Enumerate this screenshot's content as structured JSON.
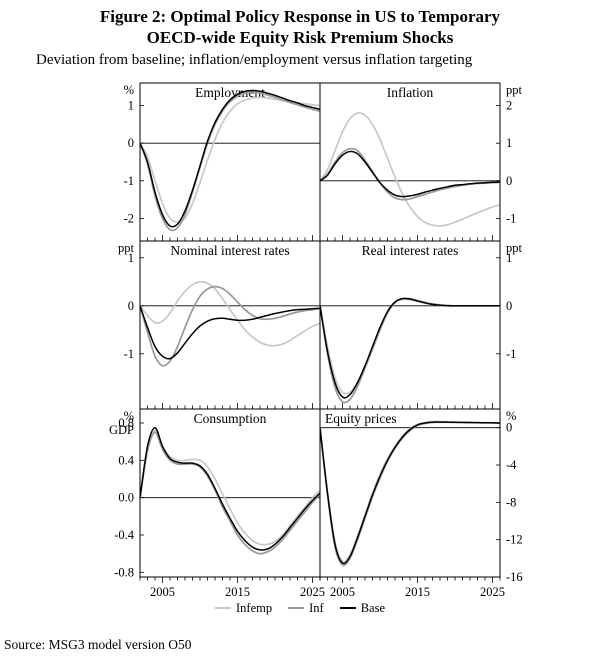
{
  "figure": {
    "title_line1": "Figure 2: Optimal Policy Response in US to Temporary",
    "title_line2": "OECD-wide Equity Risk Premium Shocks",
    "subtitle": "Deviation from baseline; inflation/employment versus inflation targeting",
    "source": "Source: MSG3 model version O50"
  },
  "legend": [
    {
      "label": "Infemp",
      "color": "#c8c8c8"
    },
    {
      "label": "Inf",
      "color": "#999999"
    },
    {
      "label": "Base",
      "color": "#000000"
    }
  ],
  "chart_data": [
    {
      "type": "line",
      "title": "Employment",
      "title_align": "center",
      "unit": "%",
      "axis_side": "left",
      "ylim": [
        -2.6,
        1.6
      ],
      "yticks": [
        1,
        0,
        -1,
        -2
      ],
      "ytick_labels": [
        "1",
        "0",
        "-1",
        "-2"
      ],
      "xlim": [
        2002,
        2026
      ],
      "xticks": [
        2005,
        2015,
        2025
      ],
      "xtick_labels": [
        "2005",
        "2015",
        "2025"
      ],
      "x": [
        2002,
        2003,
        2004,
        2005,
        2006,
        2007,
        2008,
        2009,
        2010,
        2011,
        2012,
        2013,
        2014,
        2015,
        2016,
        2017,
        2018,
        2019,
        2020,
        2021,
        2022,
        2023,
        2024,
        2025,
        2026
      ],
      "series": [
        {
          "name": "Infemp",
          "values": [
            0,
            -0.35,
            -1.0,
            -1.6,
            -2.0,
            -2.1,
            -2.0,
            -1.6,
            -1.05,
            -0.45,
            0.1,
            0.55,
            0.85,
            1.05,
            1.15,
            1.2,
            1.22,
            1.2,
            1.17,
            1.13,
            1.1,
            1.07,
            1.05,
            1.02,
            1.0
          ]
        },
        {
          "name": "Inf",
          "values": [
            0,
            -0.55,
            -1.4,
            -2.0,
            -2.3,
            -2.25,
            -1.9,
            -1.3,
            -0.65,
            0,
            0.5,
            0.85,
            1.1,
            1.25,
            1.33,
            1.35,
            1.33,
            1.28,
            1.22,
            1.15,
            1.08,
            1.02,
            0.96,
            0.9,
            0.85
          ]
        },
        {
          "name": "Base",
          "values": [
            0,
            -0.5,
            -1.3,
            -1.9,
            -2.2,
            -2.15,
            -1.8,
            -1.25,
            -0.6,
            0.05,
            0.55,
            0.9,
            1.15,
            1.3,
            1.38,
            1.4,
            1.38,
            1.33,
            1.27,
            1.2,
            1.13,
            1.07,
            1.0,
            0.95,
            0.9
          ]
        }
      ]
    },
    {
      "type": "line",
      "title": "Inflation",
      "title_align": "center",
      "unit": "ppt",
      "axis_side": "right",
      "ylim": [
        -1.6,
        2.6
      ],
      "yticks": [
        2,
        1,
        0,
        -1
      ],
      "ytick_labels": [
        "2",
        "1",
        "0",
        "-1"
      ],
      "xlim": [
        2002,
        2026
      ],
      "xticks": [
        2005,
        2015,
        2025
      ],
      "xtick_labels": [
        "2005",
        "2015",
        "2025"
      ],
      "x": [
        2002,
        2003,
        2004,
        2005,
        2006,
        2007,
        2008,
        2009,
        2010,
        2011,
        2012,
        2013,
        2014,
        2015,
        2016,
        2017,
        2018,
        2019,
        2020,
        2021,
        2022,
        2023,
        2024,
        2025,
        2026
      ],
      "series": [
        {
          "name": "Infemp",
          "values": [
            0,
            0.3,
            0.8,
            1.3,
            1.65,
            1.8,
            1.75,
            1.5,
            1.1,
            0.6,
            0.1,
            -0.35,
            -0.7,
            -0.95,
            -1.1,
            -1.18,
            -1.2,
            -1.17,
            -1.1,
            -1.02,
            -0.93,
            -0.85,
            -0.77,
            -0.7,
            -0.64
          ]
        },
        {
          "name": "Inf",
          "values": [
            0,
            0.18,
            0.5,
            0.75,
            0.85,
            0.8,
            0.55,
            0.25,
            -0.05,
            -0.3,
            -0.45,
            -0.5,
            -0.48,
            -0.42,
            -0.36,
            -0.3,
            -0.24,
            -0.19,
            -0.15,
            -0.12,
            -0.09,
            -0.07,
            -0.06,
            -0.05,
            -0.04
          ]
        },
        {
          "name": "Base",
          "values": [
            0,
            0.15,
            0.45,
            0.68,
            0.78,
            0.72,
            0.5,
            0.22,
            -0.05,
            -0.25,
            -0.38,
            -0.42,
            -0.4,
            -0.36,
            -0.3,
            -0.25,
            -0.2,
            -0.16,
            -0.12,
            -0.1,
            -0.08,
            -0.06,
            -0.05,
            -0.04,
            -0.03
          ]
        }
      ]
    },
    {
      "type": "line",
      "title": "Nominal interest rates",
      "title_align": "center",
      "unit": "ppt",
      "axis_side": "left",
      "ylim": [
        -2.15,
        1.35
      ],
      "yticks": [
        1,
        0,
        -1
      ],
      "ytick_labels": [
        "1",
        "0",
        "-1"
      ],
      "xlim": [
        2002,
        2026
      ],
      "xticks": [
        2005,
        2015,
        2025
      ],
      "xtick_labels": [
        "2005",
        "2015",
        "2025"
      ],
      "x": [
        2002,
        2003,
        2004,
        2005,
        2006,
        2007,
        2008,
        2009,
        2010,
        2011,
        2012,
        2013,
        2014,
        2015,
        2016,
        2017,
        2018,
        2019,
        2020,
        2021,
        2022,
        2023,
        2024,
        2025,
        2026
      ],
      "series": [
        {
          "name": "Infemp",
          "values": [
            0,
            -0.2,
            -0.35,
            -0.32,
            -0.15,
            0.1,
            0.3,
            0.44,
            0.5,
            0.47,
            0.35,
            0.15,
            -0.08,
            -0.3,
            -0.5,
            -0.65,
            -0.76,
            -0.82,
            -0.83,
            -0.8,
            -0.72,
            -0.62,
            -0.52,
            -0.43,
            -0.36
          ]
        },
        {
          "name": "Inf",
          "values": [
            0,
            -0.55,
            -1.05,
            -1.25,
            -1.15,
            -0.85,
            -0.45,
            -0.08,
            0.2,
            0.35,
            0.4,
            0.36,
            0.24,
            0.08,
            -0.08,
            -0.2,
            -0.27,
            -0.28,
            -0.26,
            -0.22,
            -0.17,
            -0.13,
            -0.1,
            -0.08,
            -0.06
          ]
        },
        {
          "name": "Base",
          "values": [
            0,
            -0.45,
            -0.85,
            -1.05,
            -1.1,
            -0.98,
            -0.78,
            -0.58,
            -0.42,
            -0.32,
            -0.27,
            -0.26,
            -0.28,
            -0.3,
            -0.3,
            -0.28,
            -0.24,
            -0.2,
            -0.16,
            -0.13,
            -0.1,
            -0.08,
            -0.07,
            -0.06,
            -0.05
          ]
        }
      ]
    },
    {
      "type": "line",
      "title": "Real interest rates",
      "title_align": "center",
      "unit": "ppt",
      "axis_side": "right",
      "ylim": [
        -2.15,
        1.35
      ],
      "yticks": [
        1,
        0,
        -1
      ],
      "ytick_labels": [
        "1",
        "0",
        "-1"
      ],
      "xlim": [
        2002,
        2026
      ],
      "xticks": [
        2005,
        2015,
        2025
      ],
      "xtick_labels": [
        "2005",
        "2015",
        "2025"
      ],
      "x": [
        2002,
        2003,
        2004,
        2005,
        2006,
        2007,
        2008,
        2009,
        2010,
        2011,
        2012,
        2013,
        2014,
        2015,
        2016,
        2017,
        2018,
        2019,
        2020,
        2021,
        2022,
        2023,
        2024,
        2025,
        2026
      ],
      "series": [
        {
          "name": "Infemp",
          "values": [
            0,
            -0.85,
            -1.5,
            -1.8,
            -1.8,
            -1.6,
            -1.28,
            -0.9,
            -0.5,
            -0.15,
            0.06,
            0.13,
            0.13,
            0.1,
            0.06,
            0.03,
            0.01,
            0,
            0,
            0,
            0,
            0,
            0,
            0,
            0
          ]
        },
        {
          "name": "Inf",
          "values": [
            0,
            -1.0,
            -1.7,
            -2.0,
            -1.95,
            -1.68,
            -1.3,
            -0.9,
            -0.5,
            -0.15,
            0.07,
            0.15,
            0.15,
            0.11,
            0.07,
            0.04,
            0.02,
            0.01,
            0,
            0,
            0,
            0,
            0,
            0,
            0
          ]
        },
        {
          "name": "Base",
          "values": [
            0,
            -0.95,
            -1.6,
            -1.9,
            -1.85,
            -1.6,
            -1.25,
            -0.85,
            -0.45,
            -0.12,
            0.08,
            0.15,
            0.14,
            0.1,
            0.06,
            0.03,
            0.01,
            0,
            0,
            0,
            0,
            0,
            0,
            0,
            0
          ]
        }
      ]
    },
    {
      "type": "line",
      "title": "Consumption",
      "title_align": "center",
      "unit": "%",
      "unit2": "GDP",
      "axis_side": "left",
      "ylim": [
        -0.85,
        0.95
      ],
      "yticks": [
        0.8,
        0.4,
        0,
        -0.4,
        -0.8
      ],
      "ytick_labels": [
        "0.8",
        "0.4",
        "0.0",
        "-0.4",
        "-0.8"
      ],
      "xlim": [
        2002,
        2026
      ],
      "xticks": [
        2005,
        2015,
        2025
      ],
      "xtick_labels": [
        "2005",
        "2015",
        "2025"
      ],
      "x": [
        2002,
        2003,
        2004,
        2005,
        2006,
        2007,
        2008,
        2009,
        2010,
        2011,
        2012,
        2013,
        2014,
        2015,
        2016,
        2017,
        2018,
        2019,
        2020,
        2021,
        2022,
        2023,
        2024,
        2025,
        2026
      ],
      "series": [
        {
          "name": "Infemp",
          "values": [
            0,
            0.52,
            0.72,
            0.55,
            0.44,
            0.4,
            0.4,
            0.41,
            0.4,
            0.33,
            0.2,
            0.04,
            -0.12,
            -0.27,
            -0.38,
            -0.46,
            -0.5,
            -0.5,
            -0.47,
            -0.4,
            -0.3,
            -0.2,
            -0.1,
            0,
            0.08
          ]
        },
        {
          "name": "Inf",
          "values": [
            0,
            0.5,
            0.7,
            0.52,
            0.4,
            0.36,
            0.36,
            0.36,
            0.33,
            0.23,
            0.08,
            -0.1,
            -0.25,
            -0.4,
            -0.5,
            -0.57,
            -0.6,
            -0.58,
            -0.53,
            -0.45,
            -0.35,
            -0.25,
            -0.15,
            -0.05,
            0.03
          ]
        },
        {
          "name": "Base",
          "values": [
            0,
            0.55,
            0.75,
            0.55,
            0.42,
            0.38,
            0.37,
            0.37,
            0.34,
            0.25,
            0.1,
            -0.07,
            -0.22,
            -0.36,
            -0.46,
            -0.53,
            -0.56,
            -0.55,
            -0.5,
            -0.42,
            -0.32,
            -0.22,
            -0.12,
            -0.03,
            0.05
          ]
        }
      ]
    },
    {
      "type": "line",
      "title": "Equity prices",
      "title_align": "left",
      "unit": "%",
      "axis_side": "right",
      "ylim": [
        -16,
        2
      ],
      "yticks": [
        0,
        -4,
        -8,
        -12,
        -16
      ],
      "ytick_labels": [
        "0",
        "-4",
        "-8",
        "-12",
        "-16"
      ],
      "xlim": [
        2002,
        2026
      ],
      "xticks": [
        2005,
        2015,
        2025
      ],
      "xtick_labels": [
        "2005",
        "2015",
        "2025"
      ],
      "x": [
        2002,
        2003,
        2004,
        2005,
        2006,
        2007,
        2008,
        2009,
        2010,
        2011,
        2012,
        2013,
        2014,
        2015,
        2016,
        2017,
        2018,
        2019,
        2020,
        2021,
        2022,
        2023,
        2024,
        2025,
        2026
      ],
      "series": [
        {
          "name": "Infemp",
          "values": [
            0,
            -6.8,
            -12.2,
            -14.3,
            -13.6,
            -11.6,
            -9.3,
            -7.0,
            -5.0,
            -3.3,
            -2.0,
            -0.9,
            -0.1,
            0.35,
            0.55,
            0.65,
            0.65,
            0.63,
            0.6,
            0.58,
            0.56,
            0.55,
            0.54,
            0.53,
            0.52
          ]
        },
        {
          "name": "Inf",
          "values": [
            0,
            -7.2,
            -12.8,
            -14.7,
            -14.0,
            -12.0,
            -9.7,
            -7.4,
            -5.4,
            -3.6,
            -2.2,
            -1.1,
            -0.3,
            0.25,
            0.45,
            0.55,
            0.58,
            0.58,
            0.56,
            0.55,
            0.54,
            0.53,
            0.52,
            0.51,
            0.5
          ]
        },
        {
          "name": "Base",
          "values": [
            0,
            -7,
            -12.5,
            -14.5,
            -13.8,
            -11.8,
            -9.5,
            -7.2,
            -5.2,
            -3.5,
            -2.1,
            -1.0,
            -0.2,
            0.3,
            0.5,
            0.6,
            0.6,
            0.6,
            0.58,
            0.56,
            0.55,
            0.54,
            0.53,
            0.52,
            0.5
          ]
        }
      ]
    }
  ]
}
